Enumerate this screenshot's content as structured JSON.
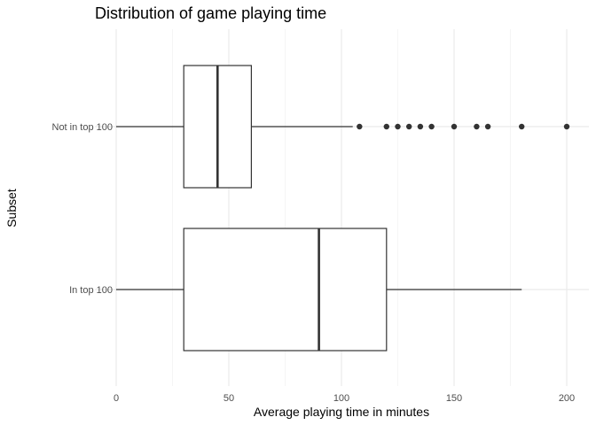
{
  "chart_data": {
    "type": "boxplot",
    "title": "Distribution of game playing time",
    "xlabel": "Average playing time in minutes",
    "ylabel": "Subset",
    "xlim": [
      0,
      210
    ],
    "x_ticks": [
      0,
      50,
      100,
      150,
      200
    ],
    "orientation": "horizontal",
    "grid": true,
    "legend": "none",
    "categories": [
      "Not in top 100",
      "In top 100"
    ],
    "boxes": [
      {
        "category": "Not in top 100",
        "whisker_low": 0,
        "q1": 30,
        "median": 45,
        "q3": 60,
        "whisker_high": 105,
        "outliers": [
          108,
          120,
          125,
          130,
          135,
          140,
          150,
          160,
          165,
          180,
          200
        ]
      },
      {
        "category": "In top 100",
        "whisker_low": 0,
        "q1": 30,
        "median": 90,
        "q3": 120,
        "whisker_high": 180,
        "outliers": []
      }
    ],
    "colors": {
      "box_stroke": "#333333",
      "box_fill": "#ffffff",
      "outlier": "#333333",
      "grid_major": "#ebebeb",
      "grid_minor": "#f5f5f5",
      "text": "#000000",
      "tick_text": "#4d4d4d"
    }
  }
}
